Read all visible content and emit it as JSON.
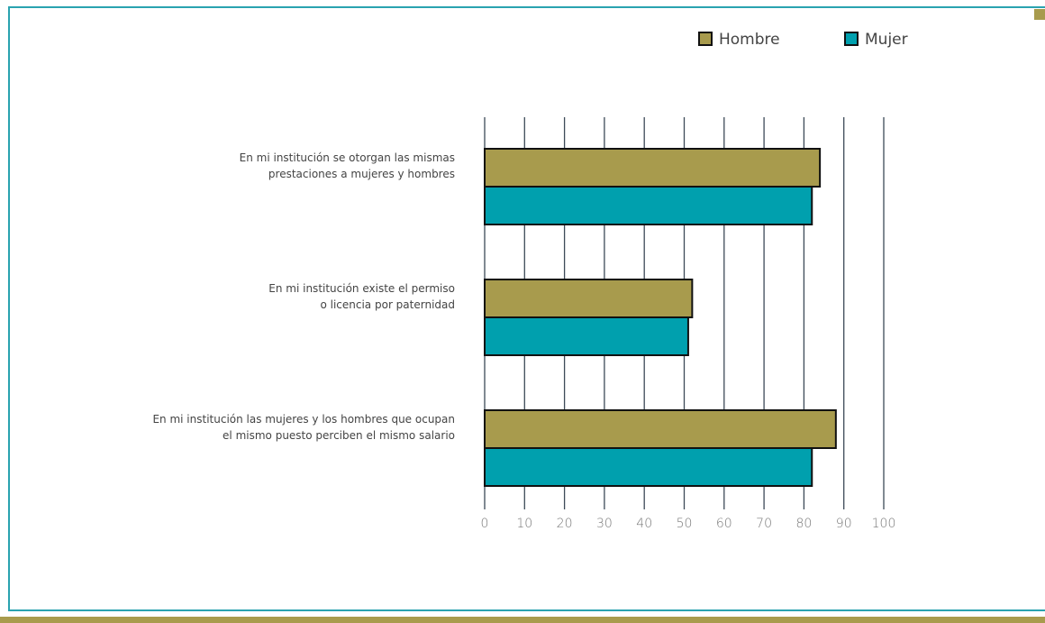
{
  "chart_data": {
    "type": "barh",
    "categories": [
      [
        "En mi institución se otorgan las mismas",
        "prestaciones a mujeres y hombres"
      ],
      [
        "En mi institución existe el permiso",
        "o licencia por paternidad"
      ],
      [
        "En mi institución las mujeres y los hombres que ocupan",
        "el mismo puesto perciben el mismo salario"
      ]
    ],
    "series": [
      {
        "name": "Hombre",
        "color": "#a89b4d",
        "values": [
          84,
          52,
          88
        ]
      },
      {
        "name": "Mujer",
        "color": "#00a0ae",
        "values": [
          82,
          51,
          82
        ]
      }
    ],
    "xlim": [
      0,
      100
    ],
    "xticks": [
      0,
      10,
      20,
      30,
      40,
      50,
      60,
      70,
      80,
      90,
      100
    ],
    "grid": true,
    "legend": "top-right"
  }
}
